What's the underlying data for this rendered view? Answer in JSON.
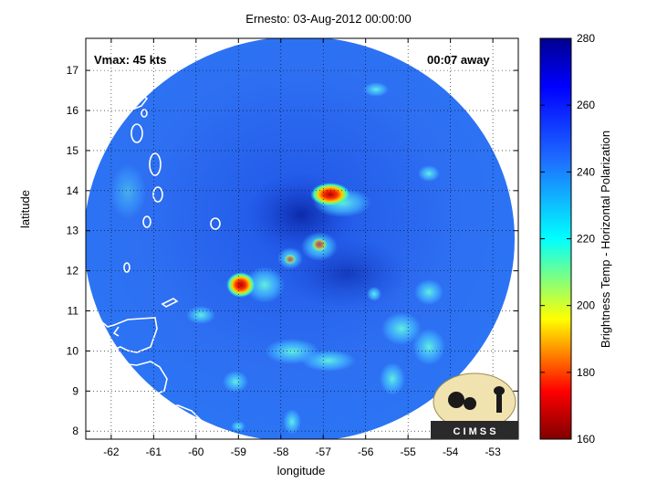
{
  "title": "Ernesto: 03-Aug-2012 00:00:00",
  "annotations": {
    "vmax": "Vmax: 45 kts",
    "away": "00:07 away"
  },
  "axes": {
    "xlabel": "longitude",
    "ylabel": "latitude",
    "xlim": [
      -62.6,
      -52.4
    ],
    "ylim": [
      7.8,
      17.8
    ],
    "xticks": [
      -62,
      -61,
      -60,
      -59,
      -58,
      -57,
      -56,
      -55,
      -54,
      -53
    ],
    "yticks": [
      8,
      9,
      10,
      11,
      12,
      13,
      14,
      15,
      16,
      17
    ],
    "grid": "dotted"
  },
  "colorbar": {
    "label": "Brightness Temp - Horizontal Polarization",
    "range": [
      160,
      280
    ],
    "ticks": [
      160,
      180,
      200,
      220,
      240,
      260,
      280
    ],
    "colormap": "jet"
  },
  "logo": {
    "text": "C I M S S"
  },
  "colors": {
    "background_field": "#2a6cf0",
    "cold_core": "#b01010",
    "coastline": "#ffffff"
  }
}
